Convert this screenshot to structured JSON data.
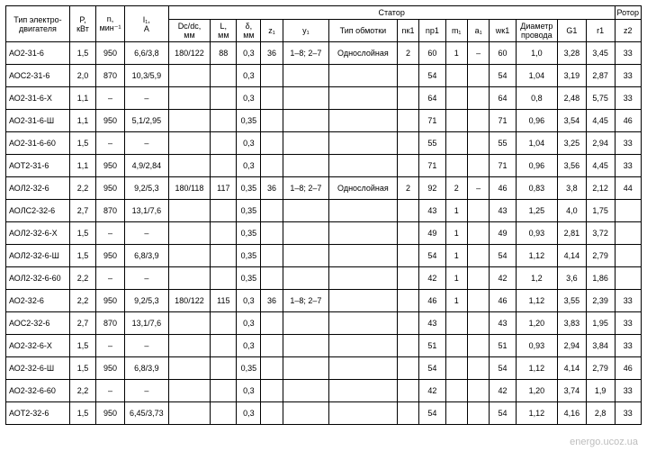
{
  "watermark": "energo.ucoz.ua",
  "headers": {
    "motor": "Тип электро-\nдвигателя",
    "p": "P,\nкВт",
    "n": "n,\nмин⁻¹",
    "i": "I₁,\nА",
    "stator": "Статор",
    "rotor": "Ротор",
    "dc": "Dc/dc,\nмм",
    "l": "L,\nмм",
    "delta": "δ,\nмм",
    "z1": "z₁",
    "y1": "y₁",
    "wind": "Тип обмотки",
    "nk1": "nк1",
    "np1": "nр1",
    "m1": "m₁",
    "a1": "a₁",
    "wk1": "wк1",
    "diam": "Диаметр\nпровода",
    "g1": "G1",
    "r1": "r1",
    "z2": "z2"
  },
  "rows": [
    {
      "motor": "АО2-31-6",
      "p": "1,5",
      "n": "950",
      "i": "6,6/3,8",
      "dc": "180/122",
      "l": "88",
      "delta": "0,3",
      "z1": "36",
      "y1": "1–8; 2–7",
      "wind": "Однослойная",
      "nk1": "2",
      "np1": "60",
      "m1": "1",
      "a1": "–",
      "wk1": "60",
      "diam": "1,0",
      "g1": "3,28",
      "r1": "3,45",
      "z2": "33"
    },
    {
      "motor": "АОС2-31-6",
      "p": "2,0",
      "n": "870",
      "i": "10,3/5,9",
      "dc": "",
      "l": "",
      "delta": "0,3",
      "z1": "",
      "y1": "",
      "wind": "",
      "nk1": "",
      "np1": "54",
      "m1": "",
      "a1": "",
      "wk1": "54",
      "diam": "1,04",
      "g1": "3,19",
      "r1": "2,87",
      "z2": "33"
    },
    {
      "motor": "АО2-31-6-Х",
      "p": "1,1",
      "n": "–",
      "i": "–",
      "dc": "",
      "l": "",
      "delta": "0,3",
      "z1": "",
      "y1": "",
      "wind": "",
      "nk1": "",
      "np1": "64",
      "m1": "",
      "a1": "",
      "wk1": "64",
      "diam": "0,8",
      "g1": "2,48",
      "r1": "5,75",
      "z2": "33"
    },
    {
      "motor": "АО2-31-6-Ш",
      "p": "1,1",
      "n": "950",
      "i": "5,1/2,95",
      "dc": "",
      "l": "",
      "delta": "0,35",
      "z1": "",
      "y1": "",
      "wind": "",
      "nk1": "",
      "np1": "71",
      "m1": "",
      "a1": "",
      "wk1": "71",
      "diam": "0,96",
      "g1": "3,54",
      "r1": "4,45",
      "z2": "46"
    },
    {
      "motor": "АО2-31-6-60",
      "p": "1,5",
      "n": "–",
      "i": "–",
      "dc": "",
      "l": "",
      "delta": "0,3",
      "z1": "",
      "y1": "",
      "wind": "",
      "nk1": "",
      "np1": "55",
      "m1": "",
      "a1": "",
      "wk1": "55",
      "diam": "1,04",
      "g1": "3,25",
      "r1": "2,94",
      "z2": "33"
    },
    {
      "motor": "АОТ2-31-6",
      "p": "1,1",
      "n": "950",
      "i": "4,9/2,84",
      "dc": "",
      "l": "",
      "delta": "0,3",
      "z1": "",
      "y1": "",
      "wind": "",
      "nk1": "",
      "np1": "71",
      "m1": "",
      "a1": "",
      "wk1": "71",
      "diam": "0,96",
      "g1": "3,56",
      "r1": "4,45",
      "z2": "33"
    },
    {
      "motor": "АОЛ2-32-6",
      "p": "2,2",
      "n": "950",
      "i": "9,2/5,3",
      "dc": "180/118",
      "l": "117",
      "delta": "0,35",
      "z1": "36",
      "y1": "1–8; 2–7",
      "wind": "Однослойная",
      "nk1": "2",
      "np1": "92",
      "m1": "2",
      "a1": "–",
      "wk1": "46",
      "diam": "0,83",
      "g1": "3,8",
      "r1": "2,12",
      "z2": "44"
    },
    {
      "motor": "АОЛС2-32-6",
      "p": "2,7",
      "n": "870",
      "i": "13,1/7,6",
      "dc": "",
      "l": "",
      "delta": "0,35",
      "z1": "",
      "y1": "",
      "wind": "",
      "nk1": "",
      "np1": "43",
      "m1": "1",
      "a1": "",
      "wk1": "43",
      "diam": "1,25",
      "g1": "4,0",
      "r1": "1,75",
      "z2": ""
    },
    {
      "motor": "АОЛ2-32-6-Х",
      "p": "1,5",
      "n": "–",
      "i": "–",
      "dc": "",
      "l": "",
      "delta": "0,35",
      "z1": "",
      "y1": "",
      "wind": "",
      "nk1": "",
      "np1": "49",
      "m1": "1",
      "a1": "",
      "wk1": "49",
      "diam": "0,93",
      "g1": "2,81",
      "r1": "3,72",
      "z2": ""
    },
    {
      "motor": "АОЛ2-32-6-Ш",
      "p": "1,5",
      "n": "950",
      "i": "6,8/3,9",
      "dc": "",
      "l": "",
      "delta": "0,35",
      "z1": "",
      "y1": "",
      "wind": "",
      "nk1": "",
      "np1": "54",
      "m1": "1",
      "a1": "",
      "wk1": "54",
      "diam": "1,12",
      "g1": "4,14",
      "r1": "2,79",
      "z2": ""
    },
    {
      "motor": "АОЛ2-32-6-60",
      "p": "2,2",
      "n": "–",
      "i": "–",
      "dc": "",
      "l": "",
      "delta": "0,35",
      "z1": "",
      "y1": "",
      "wind": "",
      "nk1": "",
      "np1": "42",
      "m1": "1",
      "a1": "",
      "wk1": "42",
      "diam": "1,2",
      "g1": "3,6",
      "r1": "1,86",
      "z2": ""
    },
    {
      "motor": "АО2-32-6",
      "p": "2,2",
      "n": "950",
      "i": "9,2/5,3",
      "dc": "180/122",
      "l": "115",
      "delta": "0,3",
      "z1": "36",
      "y1": "1–8; 2–7",
      "wind": "",
      "nk1": "",
      "np1": "46",
      "m1": "1",
      "a1": "",
      "wk1": "46",
      "diam": "1,12",
      "g1": "3,55",
      "r1": "2,39",
      "z2": "33"
    },
    {
      "motor": "АОС2-32-6",
      "p": "2,7",
      "n": "870",
      "i": "13,1/7,6",
      "dc": "",
      "l": "",
      "delta": "0,3",
      "z1": "",
      "y1": "",
      "wind": "",
      "nk1": "",
      "np1": "43",
      "m1": "",
      "a1": "",
      "wk1": "43",
      "diam": "1,20",
      "g1": "3,83",
      "r1": "1,95",
      "z2": "33"
    },
    {
      "motor": "АО2-32-6-Х",
      "p": "1,5",
      "n": "–",
      "i": "–",
      "dc": "",
      "l": "",
      "delta": "0,3",
      "z1": "",
      "y1": "",
      "wind": "",
      "nk1": "",
      "np1": "51",
      "m1": "",
      "a1": "",
      "wk1": "51",
      "diam": "0,93",
      "g1": "2,94",
      "r1": "3,84",
      "z2": "33"
    },
    {
      "motor": "АО2-32-6-Ш",
      "p": "1,5",
      "n": "950",
      "i": "6,8/3,9",
      "dc": "",
      "l": "",
      "delta": "0,35",
      "z1": "",
      "y1": "",
      "wind": "",
      "nk1": "",
      "np1": "54",
      "m1": "",
      "a1": "",
      "wk1": "54",
      "diam": "1,12",
      "g1": "4,14",
      "r1": "2,79",
      "z2": "46"
    },
    {
      "motor": "АО2-32-6-60",
      "p": "2,2",
      "n": "–",
      "i": "–",
      "dc": "",
      "l": "",
      "delta": "0,3",
      "z1": "",
      "y1": "",
      "wind": "",
      "nk1": "",
      "np1": "42",
      "m1": "",
      "a1": "",
      "wk1": "42",
      "diam": "1,20",
      "g1": "3,74",
      "r1": "1,9",
      "z2": "33"
    },
    {
      "motor": "АОТ2-32-6",
      "p": "1,5",
      "n": "950",
      "i": "6,45/3,73",
      "dc": "",
      "l": "",
      "delta": "0,3",
      "z1": "",
      "y1": "",
      "wind": "",
      "nk1": "",
      "np1": "54",
      "m1": "",
      "a1": "",
      "wk1": "54",
      "diam": "1,12",
      "g1": "4,16",
      "r1": "2,8",
      "z2": "33"
    }
  ]
}
